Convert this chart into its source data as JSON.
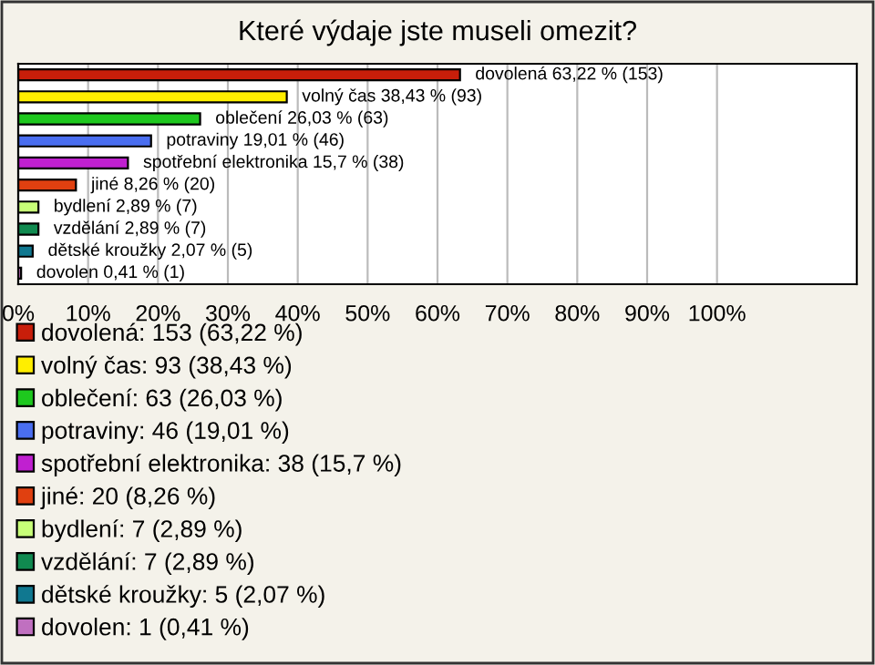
{
  "chart_data": {
    "type": "bar",
    "orientation": "horizontal",
    "title": "Které výdaje jste museli omezit?",
    "categories": [
      null,
      null,
      null,
      null,
      null,
      null,
      null,
      null,
      null,
      null
    ],
    "series": [
      {
        "name": "dovolená: 153 (63,22 %)",
        "color": "#c81e0a",
        "values": [
          63.22,
          null,
          null,
          null,
          null,
          null,
          null,
          null,
          null,
          null
        ],
        "value_labels": [
          "dovolená 63,22 % (153)",
          null,
          null,
          null,
          null,
          null,
          null,
          null,
          null,
          null
        ]
      },
      {
        "name": "volný čas: 93 (38,43 %)",
        "color": "#ffee00",
        "values": [
          null,
          38.43,
          null,
          null,
          null,
          null,
          null,
          null,
          null,
          null
        ],
        "value_labels": [
          null,
          "volný čas 38,43 % (93)",
          null,
          null,
          null,
          null,
          null,
          null,
          null,
          null
        ]
      },
      {
        "name": "oblečení: 63 (26,03 %)",
        "color": "#1ec81e",
        "values": [
          null,
          null,
          26.03,
          null,
          null,
          null,
          null,
          null,
          null,
          null
        ],
        "value_labels": [
          null,
          null,
          "oblečení 26,03 % (63)",
          null,
          null,
          null,
          null,
          null,
          null,
          null
        ]
      },
      {
        "name": "potraviny: 46 (19,01 %)",
        "color": "#4a6ef0",
        "values": [
          null,
          null,
          null,
          19.01,
          null,
          null,
          null,
          null,
          null,
          null
        ],
        "value_labels": [
          null,
          null,
          null,
          "potraviny 19,01 % (46)",
          null,
          null,
          null,
          null,
          null,
          null
        ]
      },
      {
        "name": "spotřební elektronika: 38 (15,7 %)",
        "color": "#c020d0",
        "values": [
          null,
          null,
          null,
          null,
          15.7,
          null,
          null,
          null,
          null,
          null
        ],
        "value_labels": [
          null,
          null,
          null,
          null,
          "spotřební elektronika 15,7 % (38)",
          null,
          null,
          null,
          null,
          null
        ]
      },
      {
        "name": "jiné: 20 (8,26 %)",
        "color": "#e04010",
        "values": [
          null,
          null,
          null,
          null,
          null,
          8.26,
          null,
          null,
          null,
          null
        ],
        "value_labels": [
          null,
          null,
          null,
          null,
          null,
          "jiné 8,26 % (20)",
          null,
          null,
          null,
          null
        ]
      },
      {
        "name": "bydlení: 7 (2,89 %)",
        "color": "#c8ff78",
        "values": [
          null,
          null,
          null,
          null,
          null,
          null,
          2.89,
          null,
          null,
          null
        ],
        "value_labels": [
          null,
          null,
          null,
          null,
          null,
          null,
          "bydlení 2,89 % (7)",
          null,
          null,
          null
        ]
      },
      {
        "name": "vzdělání: 7 (2,89 %)",
        "color": "#108a50",
        "values": [
          null,
          null,
          null,
          null,
          null,
          null,
          null,
          2.89,
          null,
          null
        ],
        "value_labels": [
          null,
          null,
          null,
          null,
          null,
          null,
          null,
          "vzdělání 2,89 % (7)",
          null,
          null
        ]
      },
      {
        "name": "dětské kroužky: 5 (2,07 %)",
        "color": "#107890",
        "values": [
          null,
          null,
          null,
          null,
          null,
          null,
          null,
          null,
          2.07,
          null
        ],
        "value_labels": [
          null,
          null,
          null,
          null,
          null,
          null,
          null,
          null,
          "dětské kroužky 2,07 % (5)",
          null
        ]
      },
      {
        "name": "dovolen: 1 (0,41 %)",
        "color": "#c070c0",
        "values": [
          null,
          null,
          null,
          null,
          null,
          null,
          null,
          null,
          null,
          0.41
        ],
        "value_labels": [
          null,
          null,
          null,
          null,
          null,
          null,
          null,
          null,
          null,
          "dovolen 0,41 % (1)"
        ]
      }
    ],
    "xlim": [
      0,
      120
    ],
    "xticks": [
      {
        "value": 0,
        "label": "0%"
      },
      {
        "value": 10,
        "label": "10%"
      },
      {
        "value": 20,
        "label": "20%"
      },
      {
        "value": 30,
        "label": "30%"
      },
      {
        "value": 40,
        "label": "40%"
      },
      {
        "value": 50,
        "label": "50%"
      },
      {
        "value": 60,
        "label": "60%"
      },
      {
        "value": 70,
        "label": "70%"
      },
      {
        "value": 80,
        "label": "80%"
      },
      {
        "value": 90,
        "label": "90%"
      },
      {
        "value": 100,
        "label": "100%"
      }
    ],
    "grid": "x",
    "legend": "bottom"
  }
}
